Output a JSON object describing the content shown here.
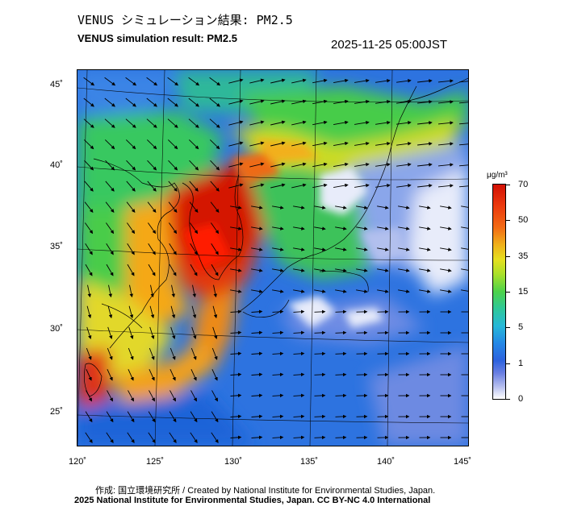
{
  "title_jp": "VENUS シミュレーション結果: PM2.5",
  "title_en": "VENUS simulation result: PM2.5",
  "timestamp": "2025-11-25 05:00JST",
  "lat_labels": [
    "45˚",
    "40˚",
    "35˚",
    "30˚",
    "25˚"
  ],
  "lon_labels": [
    "120˚",
    "125˚",
    "130˚",
    "135˚",
    "140˚",
    "145˚"
  ],
  "colorbar": {
    "unit": "μg/m³",
    "ticks": [
      "70",
      "50",
      "35",
      "15",
      "5",
      "1",
      "0"
    ]
  },
  "credit": "作成: 国立環境研究所 / Created by National Institute for Environmental Studies, Japan.",
  "license": "2025 National Institute for Environmental Studies, Japan. CC BY-NC 4.0 International"
}
